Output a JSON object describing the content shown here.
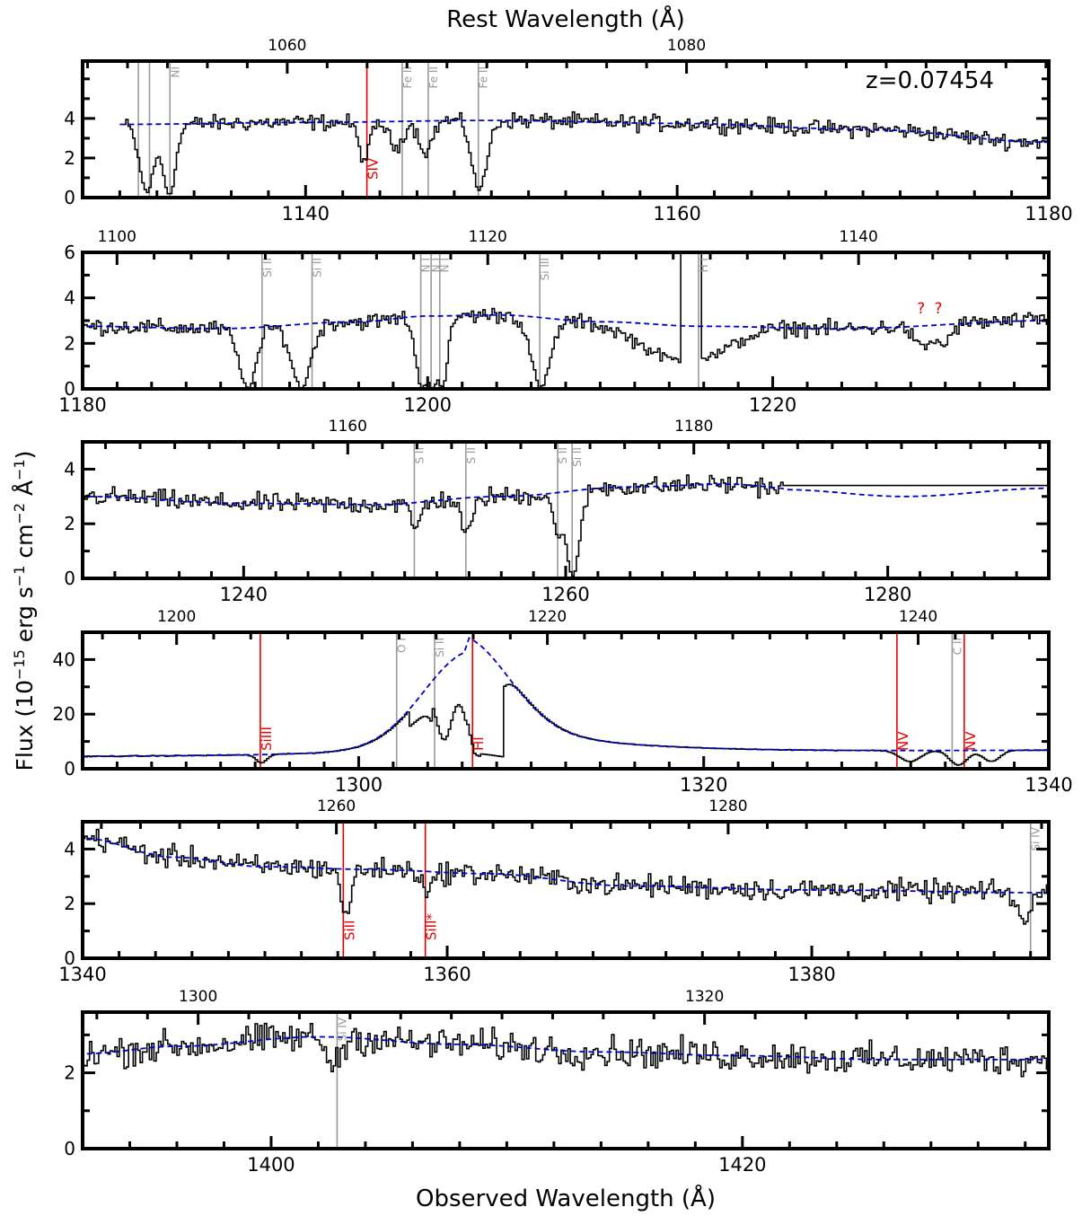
{
  "figure": {
    "top_label": "Rest Wavelength (Å)",
    "bottom_label": "Observed Wavelength (Å)",
    "y_label_main": "Flux (10",
    "y_label_exp1": "−15",
    "y_label_mid": " erg s",
    "y_label_exp2": "−1",
    "y_label_mid2": " cm",
    "y_label_exp3": "−2",
    "y_label_mid3": " Å",
    "y_label_exp4": "−1",
    "y_label_end": ")",
    "redshift_label": "z=0.07454",
    "colors": {
      "data": "#000000",
      "continuum": "#0000cc",
      "ism_line": "#999999",
      "intrinsic_line": "#e60000"
    }
  },
  "chart_data": [
    {
      "type": "line",
      "panel": 1,
      "xlim": [
        1128,
        1180
      ],
      "ylim": [
        0,
        6.9
      ],
      "x_ticks": [
        1140,
        1160,
        1180
      ],
      "y_ticks": [
        0,
        2,
        4
      ],
      "rest_ticks": [
        1060,
        1080
      ],
      "continuum": {
        "x": [
          1130,
          1140,
          1150,
          1160,
          1170,
          1180
        ],
        "y": [
          3.7,
          3.8,
          3.9,
          3.75,
          3.45,
          2.8
        ]
      },
      "absorptions": [
        {
          "x": 1131.4,
          "depth": 0.92,
          "width": 0.4
        },
        {
          "x": 1132.6,
          "depth": 0.95,
          "width": 0.35
        },
        {
          "x": 1143.1,
          "depth": 0.5,
          "width": 0.3
        },
        {
          "x": 1144.8,
          "depth": 0.35,
          "width": 0.35
        },
        {
          "x": 1146.4,
          "depth": 0.4,
          "width": 0.35
        },
        {
          "x": 1149.3,
          "depth": 0.9,
          "width": 0.4
        }
      ],
      "noise": 0.35,
      "data_start": 1130.2,
      "lines": [
        {
          "x": 1131.0,
          "label": "",
          "kind": "ism"
        },
        {
          "x": 1131.6,
          "label": "",
          "kind": "ism"
        },
        {
          "x": 1132.7,
          "label": "NI",
          "kind": "ism"
        },
        {
          "x": 1143.3,
          "label": "SIV",
          "kind": "intrinsic"
        },
        {
          "x": 1145.2,
          "label": "Fe II",
          "kind": "ism"
        },
        {
          "x": 1146.6,
          "label": "Fe II",
          "kind": "ism"
        },
        {
          "x": 1149.3,
          "label": "Fe II",
          "kind": "ism"
        }
      ],
      "question_marks": []
    },
    {
      "type": "line",
      "panel": 2,
      "xlim": [
        1180,
        1236
      ],
      "ylim": [
        0,
        6
      ],
      "x_ticks": [
        1180,
        1200,
        1220
      ],
      "y_ticks": [
        0,
        2,
        4,
        6
      ],
      "rest_ticks": [
        1100,
        1120,
        1140
      ],
      "continuum": {
        "x": [
          1180,
          1188,
          1196,
          1200,
          1204,
          1210,
          1216,
          1224,
          1236
        ],
        "y": [
          2.75,
          2.65,
          2.95,
          3.2,
          3.25,
          2.95,
          2.75,
          2.65,
          3.0
        ]
      },
      "absorptions": [
        {
          "x": 1189.5,
          "depth": 0.98,
          "width": 0.5
        },
        {
          "x": 1192.6,
          "depth": 0.98,
          "width": 0.55
        },
        {
          "x": 1199.6,
          "depth": 0.98,
          "width": 0.35
        },
        {
          "x": 1200.2,
          "depth": 0.98,
          "width": 0.35
        },
        {
          "x": 1200.8,
          "depth": 0.98,
          "width": 0.3
        },
        {
          "x": 1206.5,
          "depth": 0.98,
          "width": 0.55
        },
        {
          "x": 1228.6,
          "depth": 0.35,
          "width": 0.45
        },
        {
          "x": 1229.8,
          "depth": 0.3,
          "width": 0.45
        }
      ],
      "noise": 0.3,
      "data_start": 1180,
      "lyman": true,
      "lines": [
        {
          "x": 1190.4,
          "label": "Si II",
          "kind": "ism"
        },
        {
          "x": 1193.3,
          "label": "Si II",
          "kind": "ism"
        },
        {
          "x": 1199.6,
          "label": "N I",
          "kind": "ism"
        },
        {
          "x": 1200.2,
          "label": "N I",
          "kind": "ism"
        },
        {
          "x": 1200.7,
          "label": "N I",
          "kind": "ism"
        },
        {
          "x": 1206.5,
          "label": "Si III",
          "kind": "ism"
        },
        {
          "x": 1215.7,
          "label": "H I",
          "kind": "ism"
        }
      ],
      "question_marks": [
        1228.6,
        1229.6
      ]
    },
    {
      "type": "line",
      "panel": 3,
      "xlim": [
        1230,
        1290
      ],
      "ylim": [
        0,
        5
      ],
      "x_ticks": [
        1240,
        1260,
        1280
      ],
      "y_ticks": [
        0,
        2,
        4
      ],
      "rest_ticks": [
        1160,
        1180
      ],
      "continuum": {
        "x": [
          1230,
          1240,
          1248,
          1256,
          1264,
          1270,
          1275,
          1282,
          1290
        ],
        "y": [
          3.0,
          2.75,
          2.7,
          3.0,
          3.35,
          3.45,
          3.25,
          3.0,
          3.3
        ]
      },
      "absorptions": [
        {
          "x": 1250.6,
          "depth": 0.35,
          "width": 0.3
        },
        {
          "x": 1253.8,
          "depth": 0.45,
          "width": 0.35
        },
        {
          "x": 1259.5,
          "depth": 0.5,
          "width": 0.3
        },
        {
          "x": 1260.4,
          "depth": 0.98,
          "width": 0.4
        }
      ],
      "noise": 0.3,
      "data_start": 1230,
      "data_end": 1273.5,
      "flat_segment": {
        "x0": 1273.5,
        "x1": 1290,
        "y": 3.4
      },
      "lines": [
        {
          "x": 1250.6,
          "label": "S II",
          "kind": "ism"
        },
        {
          "x": 1253.8,
          "label": "S II",
          "kind": "ism"
        },
        {
          "x": 1259.5,
          "label": "S II",
          "kind": "ism"
        },
        {
          "x": 1260.4,
          "label": "Si II",
          "kind": "ism"
        }
      ],
      "question_marks": []
    },
    {
      "type": "line",
      "panel": 4,
      "xlim": [
        1284,
        1340
      ],
      "ylim": [
        0,
        50
      ],
      "x_ticks": [
        1300,
        1320,
        1340
      ],
      "y_ticks": [
        0,
        20,
        40
      ],
      "rest_ticks": [
        1200,
        1220,
        1240
      ],
      "emission": {
        "center": 1306.2,
        "peak": 37,
        "base": 4.5
      },
      "absorptions": [
        {
          "x": 1294.3,
          "depth": 0.6,
          "width": 0.3
        },
        {
          "x": 1304.9,
          "depth": 0.7,
          "width": 0.5
        },
        {
          "x": 1306.9,
          "depth": 0.9,
          "width": 0.8
        },
        {
          "x": 1331.9,
          "depth": 0.6,
          "width": 0.6
        },
        {
          "x": 1334.7,
          "depth": 0.8,
          "width": 0.5
        },
        {
          "x": 1336.6,
          "depth": 0.6,
          "width": 0.5
        }
      ],
      "noise": 0.25,
      "data_start": 1284,
      "lines": [
        {
          "x": 1294.3,
          "label": "SiIII",
          "kind": "intrinsic"
        },
        {
          "x": 1302.2,
          "label": "O I",
          "kind": "ism"
        },
        {
          "x": 1304.4,
          "label": "Si II",
          "kind": "ism"
        },
        {
          "x": 1306.6,
          "label": "HI",
          "kind": "intrinsic"
        },
        {
          "x": 1331.2,
          "label": "NV",
          "kind": "intrinsic"
        },
        {
          "x": 1334.4,
          "label": "C II",
          "kind": "ism"
        },
        {
          "x": 1335.1,
          "label": "NV",
          "kind": "intrinsic"
        }
      ],
      "question_marks": []
    },
    {
      "type": "line",
      "panel": 5,
      "xlim": [
        1340,
        1393
      ],
      "ylim": [
        0,
        5
      ],
      "x_ticks": [
        1340,
        1360,
        1380
      ],
      "y_ticks": [
        0,
        2,
        4
      ],
      "rest_ticks": [
        1260,
        1280
      ],
      "continuum": {
        "x": [
          1340,
          1345,
          1350,
          1356,
          1362,
          1370,
          1380,
          1393
        ],
        "y": [
          4.4,
          3.7,
          3.35,
          3.25,
          3.1,
          2.65,
          2.5,
          2.4
        ]
      },
      "absorptions": [
        {
          "x": 1354.4,
          "depth": 0.55,
          "width": 0.25
        },
        {
          "x": 1358.9,
          "depth": 0.25,
          "width": 0.25
        },
        {
          "x": 1391.6,
          "depth": 0.45,
          "width": 0.35
        }
      ],
      "noise": 0.35,
      "data_start": 1340,
      "lines": [
        {
          "x": 1354.3,
          "label": "SiII",
          "kind": "intrinsic"
        },
        {
          "x": 1358.8,
          "label": "SiII*",
          "kind": "intrinsic"
        },
        {
          "x": 1392.0,
          "label": "Si IV",
          "kind": "ism"
        }
      ],
      "question_marks": []
    },
    {
      "type": "line",
      "panel": 6,
      "xlim": [
        1392,
        1433
      ],
      "ylim": [
        0,
        3.6
      ],
      "x_ticks": [
        1400,
        1420
      ],
      "y_ticks": [
        0,
        2
      ],
      "rest_ticks": [
        1300,
        1320
      ],
      "continuum": {
        "x": [
          1392,
          1396,
          1402,
          1408,
          1414,
          1420,
          1426,
          1433
        ],
        "y": [
          2.5,
          2.7,
          2.95,
          2.75,
          2.55,
          2.45,
          2.35,
          2.35
        ]
      },
      "absorptions": [
        {
          "x": 1402.6,
          "depth": 0.25,
          "width": 0.3
        }
      ],
      "noise": 0.35,
      "data_start": 1392,
      "lines": [
        {
          "x": 1402.8,
          "label": "Si IV",
          "kind": "ism"
        }
      ],
      "question_marks": []
    }
  ]
}
